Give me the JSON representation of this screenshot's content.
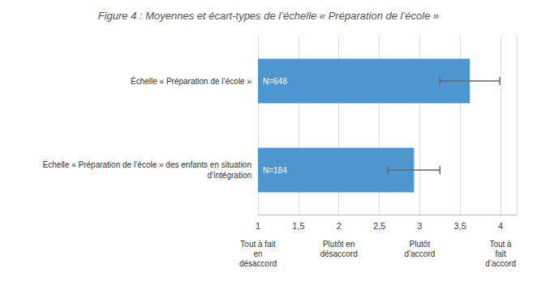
{
  "chart_data": {
    "type": "bar",
    "orientation": "horizontal",
    "title": "Figure 4 : Moyennes et écart-types de l’échelle « Préparation de l’école »",
    "categories": [
      "Échelle « Préparation de l’école »",
      "Échelle « Préparation de l’école » des enfants en situation\nd’intégration"
    ],
    "values": [
      3.62,
      2.93
    ],
    "errors": [
      0.37,
      0.32
    ],
    "annotations": [
      "N=648",
      "N=184"
    ],
    "color": "#4e96d0",
    "xlim": [
      1,
      4.2
    ],
    "xticks": [
      1,
      {
        "value": 1.5,
        "label": "1,5"
      },
      2,
      {
        "value": 2.5,
        "label": "2,5"
      },
      3,
      {
        "value": 3.5,
        "label": "3,5"
      },
      4
    ],
    "x_annotations": [
      {
        "value": 1,
        "label": "Tout à fait\nen\ndésaccord"
      },
      {
        "value": 2,
        "label": "Plutôt en\ndésaccord"
      },
      {
        "value": 3,
        "label": "Plutôt\nd’accord"
      },
      {
        "value": 4,
        "label": "Tout à\nfait\nd’accord"
      }
    ],
    "grid": true
  }
}
